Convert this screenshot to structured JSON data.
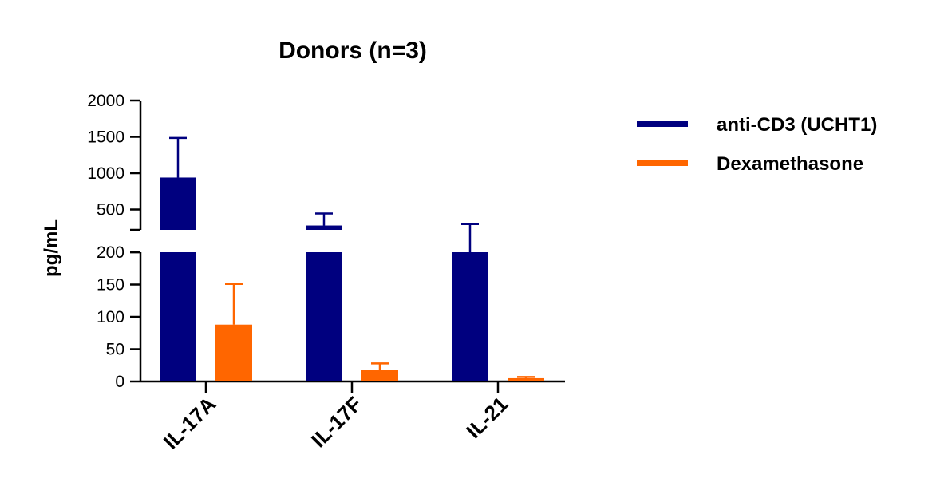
{
  "chart_data": {
    "type": "bar",
    "title": "Donors (n=3)",
    "ylabel": "pg/mL",
    "xlabel": "",
    "categories": [
      "IL-17A",
      "IL-17F",
      "IL-21"
    ],
    "series": [
      {
        "name": "anti-CD3 (UCHT1)",
        "color": "#00007f",
        "values": [
          940,
          280,
          200
        ],
        "errors": [
          545,
          165,
          100
        ]
      },
      {
        "name": "Dexamethasone",
        "color": "#ff6600",
        "values": [
          88,
          18,
          5
        ],
        "errors": [
          63,
          10,
          2
        ]
      }
    ],
    "y_axis": {
      "broken": true,
      "lower_segment": {
        "range": [
          0,
          200
        ],
        "ticks": [
          0,
          50,
          100,
          150,
          200
        ]
      },
      "upper_segment": {
        "range": [
          220,
          2000
        ],
        "ticks": [
          500,
          1000,
          1500,
          2000
        ]
      }
    },
    "legend_position": "right"
  }
}
